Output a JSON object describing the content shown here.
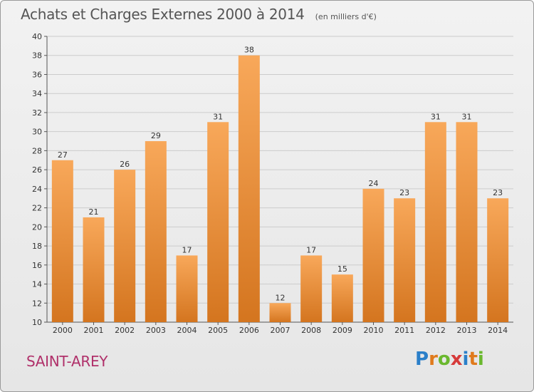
{
  "title": "Achats et Charges Externes 2000 à 2014",
  "subtitle": "(en milliers d'€)",
  "city": "SAINT-AREY",
  "logo": {
    "text": "Proxiti",
    "letters": [
      {
        "ch": "P",
        "color": "#2a7fc9"
      },
      {
        "ch": "r",
        "color": "#e07a1c"
      },
      {
        "ch": "o",
        "color": "#6ab82e"
      },
      {
        "ch": "x",
        "color": "#d63a3a"
      },
      {
        "ch": "i",
        "color": "#2a7fc9"
      },
      {
        "ch": "t",
        "color": "#e07a1c"
      },
      {
        "ch": "i",
        "color": "#6ab82e"
      }
    ]
  },
  "colors": {
    "bar_light": "#f8a85a",
    "bar_dark": "#d4751f",
    "grid": "#cccccc"
  },
  "chart_data": {
    "type": "bar",
    "title": "Achats et Charges Externes 2000 à 2014",
    "subtitle": "(en milliers d'€)",
    "categories": [
      "2000",
      "2001",
      "2002",
      "2003",
      "2004",
      "2005",
      "2006",
      "2007",
      "2008",
      "2009",
      "2010",
      "2011",
      "2012",
      "2013",
      "2014"
    ],
    "values": [
      27,
      21,
      26,
      29,
      17,
      31,
      38,
      12,
      17,
      15,
      24,
      23,
      31,
      31,
      23
    ],
    "ylim": [
      10,
      40
    ],
    "yticks": [
      10,
      12,
      14,
      16,
      18,
      20,
      22,
      24,
      26,
      28,
      30,
      32,
      34,
      36,
      38,
      40
    ],
    "grid": true,
    "legend": "none"
  }
}
